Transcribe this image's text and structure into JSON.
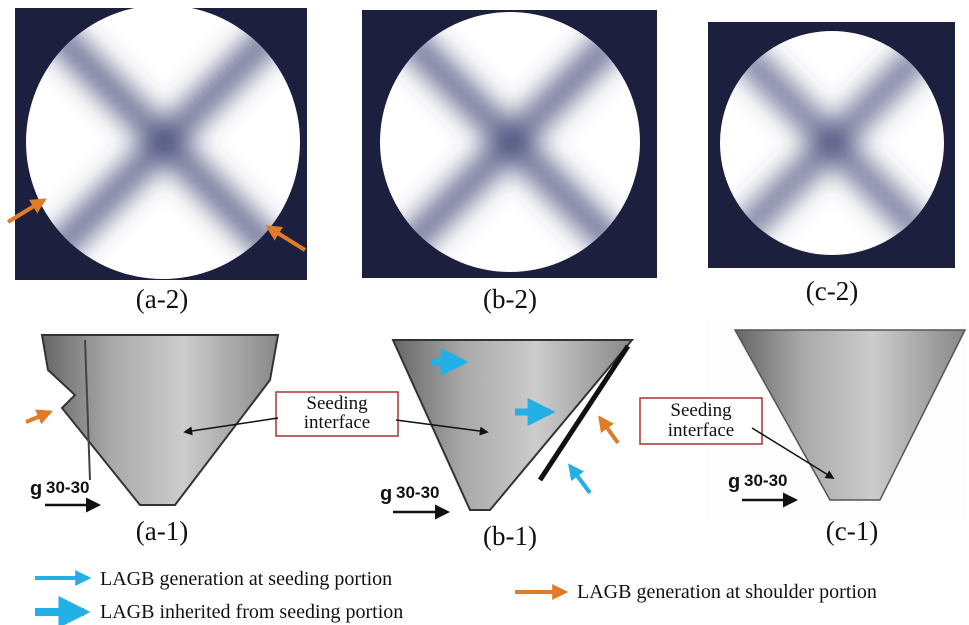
{
  "panels": [
    {
      "top_label": "(a-2)",
      "bottom_label": "(a-1)",
      "gravity_label": "g",
      "gravity_sub": "30-30"
    },
    {
      "top_label": "(b-2)",
      "bottom_label": "(b-1)",
      "gravity_label": "g",
      "gravity_sub": "30-30"
    },
    {
      "top_label": "(c-2)",
      "bottom_label": "(c-1)",
      "gravity_label": "g",
      "gravity_sub": "30-30"
    }
  ],
  "annotations": [
    {
      "line1": "Seeding",
      "line2": "interface"
    },
    {
      "line1": "Seeding",
      "line2": "interface"
    }
  ],
  "legend": [
    {
      "text": "LAGB generation at seeding portion"
    },
    {
      "text": "LAGB inherited from seeding portion"
    },
    {
      "text": "LAGB generation at shoulder portion"
    }
  ]
}
